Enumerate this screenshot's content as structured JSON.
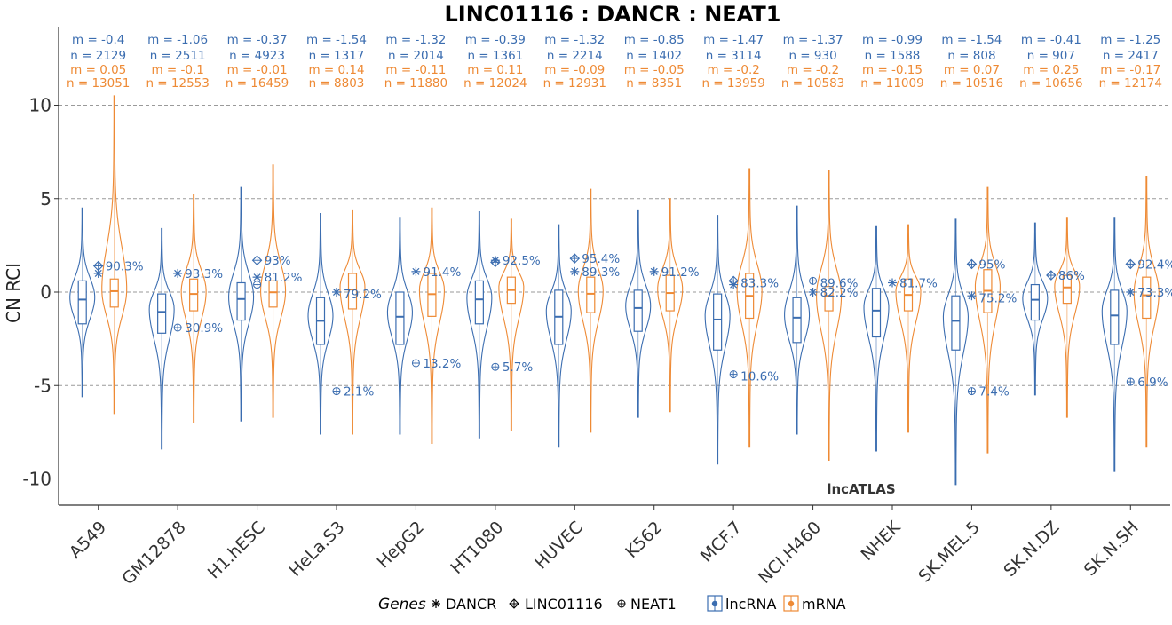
{
  "chart_data": {
    "type": "violin",
    "title": "LINC01116 : DANCR : NEAT1",
    "xlabel": "",
    "ylabel": "CN RCI",
    "ylim": [
      -10.5,
      11.5
    ],
    "yticks": [
      10,
      5,
      0,
      -5,
      -10
    ],
    "grid": "horizontal-dashed",
    "watermark": "lncATLAS",
    "colors": {
      "lncRNA": "#3b6db0",
      "mRNA": "#ee8a35",
      "title": "#000000"
    },
    "legend": {
      "position": "bottom",
      "genes_title": "Genes",
      "genes": [
        {
          "symbol": "✳",
          "label": "DANCR"
        },
        {
          "symbol": "⊕",
          "label": "LINC01116",
          "marker": "diamond-plus"
        },
        {
          "symbol": "⊕",
          "label": "NEAT1",
          "marker": "circle-plus"
        }
      ],
      "classes": [
        {
          "label": "lncRNA",
          "color": "#3b6db0"
        },
        {
          "label": "mRNA",
          "color": "#ee8a35"
        }
      ]
    },
    "categories": [
      "A549",
      "GM12878",
      "H1.hESC",
      "HeLa.S3",
      "HepG2",
      "HT1080",
      "HUVEC",
      "K562",
      "MCF.7",
      "NCI.H460",
      "NHEK",
      "SK.MEL.5",
      "SK.N.DZ",
      "SK.N.SH"
    ],
    "stats": [
      {
        "cell": "A549",
        "lnc_m": "m = -0.4",
        "lnc_n": "n = 2129",
        "mrna_m": "m = 0.05",
        "mrna_n": "n = 13051"
      },
      {
        "cell": "GM12878",
        "lnc_m": "m = -1.06",
        "lnc_n": "n = 2511",
        "mrna_m": "m = -0.1",
        "mrna_n": "n = 12553"
      },
      {
        "cell": "H1.hESC",
        "lnc_m": "m = -0.37",
        "lnc_n": "n = 4923",
        "mrna_m": "m = -0.01",
        "mrna_n": "n = 16459"
      },
      {
        "cell": "HeLa.S3",
        "lnc_m": "m = -1.54",
        "lnc_n": "n = 1317",
        "mrna_m": "m = 0.14",
        "mrna_n": "n = 8803"
      },
      {
        "cell": "HepG2",
        "lnc_m": "m = -1.32",
        "lnc_n": "n = 2014",
        "mrna_m": "m = -0.11",
        "mrna_n": "n = 11880"
      },
      {
        "cell": "HT1080",
        "lnc_m": "m = -0.39",
        "lnc_n": "n = 1361",
        "mrna_m": "m = 0.11",
        "mrna_n": "n = 12024"
      },
      {
        "cell": "HUVEC",
        "lnc_m": "m = -1.32",
        "lnc_n": "n = 2214",
        "mrna_m": "m = -0.09",
        "mrna_n": "n = 12931"
      },
      {
        "cell": "K562",
        "lnc_m": "m = -0.85",
        "lnc_n": "n = 1402",
        "mrna_m": "m = -0.05",
        "mrna_n": "n = 8351"
      },
      {
        "cell": "MCF.7",
        "lnc_m": "m = -1.47",
        "lnc_n": "n = 3114",
        "mrna_m": "m = -0.2",
        "mrna_n": "n = 13959"
      },
      {
        "cell": "NCI.H460",
        "lnc_m": "m = -1.37",
        "lnc_n": "n = 930",
        "mrna_m": "m = -0.2",
        "mrna_n": "n = 10583"
      },
      {
        "cell": "NHEK",
        "lnc_m": "m = -0.99",
        "lnc_n": "n = 1588",
        "mrna_m": "m = -0.15",
        "mrna_n": "n = 11009"
      },
      {
        "cell": "SK.MEL.5",
        "lnc_m": "m = -1.54",
        "lnc_n": "n = 808",
        "mrna_m": "m = 0.07",
        "mrna_n": "n = 10516"
      },
      {
        "cell": "SK.N.DZ",
        "lnc_m": "m = -0.41",
        "lnc_n": "n = 907",
        "mrna_m": "m = 0.25",
        "mrna_n": "n = 10656"
      },
      {
        "cell": "SK.N.SH",
        "lnc_m": "m = -1.25",
        "lnc_n": "n = 2417",
        "mrna_m": "m = -0.17",
        "mrna_n": "n = 12174"
      }
    ],
    "series": [
      {
        "name": "lncRNA",
        "median": [
          -0.4,
          -1.06,
          -0.37,
          -1.54,
          -1.32,
          -0.39,
          -1.32,
          -0.85,
          -1.47,
          -1.37,
          -0.99,
          -1.54,
          -0.41,
          -1.25
        ],
        "q1": [
          -1.7,
          -2.2,
          -1.5,
          -2.8,
          -2.8,
          -1.7,
          -2.8,
          -2.1,
          -3.1,
          -2.7,
          -2.4,
          -3.1,
          -1.5,
          -2.8
        ],
        "q3": [
          0.6,
          -0.1,
          0.5,
          -0.3,
          0.0,
          0.6,
          0.1,
          0.1,
          -0.1,
          -0.3,
          0.2,
          -0.2,
          0.4,
          0.1
        ],
        "min": [
          -5.6,
          -8.4,
          -6.9,
          -7.6,
          -7.6,
          -7.8,
          -8.3,
          -6.7,
          -9.2,
          -7.6,
          -8.5,
          -10.3,
          -5.5,
          -9.6
        ],
        "max": [
          4.5,
          3.4,
          5.6,
          4.2,
          4.0,
          4.3,
          3.6,
          4.4,
          4.1,
          4.6,
          3.5,
          3.9,
          3.7,
          4.0
        ]
      },
      {
        "name": "mRNA",
        "median": [
          0.05,
          -0.1,
          -0.01,
          0.14,
          -0.11,
          0.11,
          -0.09,
          -0.05,
          -0.2,
          -0.2,
          -0.15,
          0.07,
          0.25,
          -0.17
        ],
        "q1": [
          -0.8,
          -1.0,
          -0.8,
          -0.9,
          -1.3,
          -0.6,
          -1.1,
          -1.0,
          -1.4,
          -1.0,
          -1.0,
          -1.1,
          -0.6,
          -1.4
        ],
        "q3": [
          0.7,
          0.7,
          0.6,
          1.0,
          1.0,
          0.8,
          0.8,
          0.9,
          1.0,
          0.3,
          0.7,
          1.2,
          0.9,
          0.8
        ],
        "min": [
          -6.5,
          -7.0,
          -6.7,
          -7.6,
          -8.1,
          -7.4,
          -7.5,
          -6.4,
          -8.3,
          -9.0,
          -7.5,
          -8.6,
          -6.7,
          -8.3
        ],
        "max": [
          10.5,
          5.2,
          6.8,
          4.4,
          4.5,
          3.9,
          5.5,
          5.0,
          6.6,
          6.5,
          3.6,
          5.6,
          4.0,
          6.2
        ]
      }
    ],
    "gene_points": [
      {
        "cell": "A549",
        "DANCR": 1.0,
        "LINC01116": 1.4,
        "NEAT1": null,
        "labels": [
          {
            "text": "90.3%",
            "y": 1.4
          }
        ]
      },
      {
        "cell": "GM12878",
        "DANCR": 1.0,
        "LINC01116": null,
        "NEAT1": -1.9,
        "labels": [
          {
            "text": "93.3%",
            "y": 1.0
          },
          {
            "text": "30.9%",
            "y": -1.9
          }
        ]
      },
      {
        "cell": "H1.hESC",
        "DANCR": 0.8,
        "LINC01116": 1.7,
        "NEAT1": 0.4,
        "labels": [
          {
            "text": "93%",
            "y": 1.7
          },
          {
            "text": "81.2%",
            "y": 0.8
          }
        ]
      },
      {
        "cell": "HeLa.S3",
        "DANCR": 0.0,
        "LINC01116": null,
        "NEAT1": -5.3,
        "labels": [
          {
            "text": "79.2%",
            "y": -0.1
          },
          {
            "text": "2.1%",
            "y": -5.3
          }
        ]
      },
      {
        "cell": "HepG2",
        "DANCR": 1.1,
        "LINC01116": null,
        "NEAT1": -3.8,
        "labels": [
          {
            "text": "91.4%",
            "y": 1.1
          },
          {
            "text": "13.2%",
            "y": -3.8
          }
        ]
      },
      {
        "cell": "HT1080",
        "DANCR": 1.7,
        "LINC01116": 1.6,
        "NEAT1": -4.0,
        "labels": [
          {
            "text": "92.5%",
            "y": 1.7
          },
          {
            "text": "5.7%",
            "y": -4.0
          }
        ]
      },
      {
        "cell": "HUVEC",
        "DANCR": 1.1,
        "LINC01116": 1.8,
        "NEAT1": null,
        "labels": [
          {
            "text": "95.4%",
            "y": 1.8
          },
          {
            "text": "89.3%",
            "y": 1.1
          }
        ]
      },
      {
        "cell": "K562",
        "DANCR": 1.1,
        "LINC01116": null,
        "NEAT1": null,
        "labels": [
          {
            "text": "91.2%",
            "y": 1.1
          }
        ]
      },
      {
        "cell": "MCF.7",
        "DANCR": 0.4,
        "LINC01116": 0.6,
        "NEAT1": -4.4,
        "labels": [
          {
            "text": "83.3%",
            "y": 0.5
          },
          {
            "text": "10.6%",
            "y": -4.5
          }
        ]
      },
      {
        "cell": "NCI.H460",
        "DANCR": 0.0,
        "LINC01116": null,
        "NEAT1": 0.6,
        "labels": [
          {
            "text": "89.6%",
            "y": 0.5
          },
          {
            "text": "82.2%",
            "y": 0.0
          }
        ]
      },
      {
        "cell": "NHEK",
        "DANCR": 0.5,
        "LINC01116": null,
        "NEAT1": null,
        "labels": [
          {
            "text": "81.7%",
            "y": 0.5
          }
        ]
      },
      {
        "cell": "SK.MEL.5",
        "DANCR": -0.2,
        "LINC01116": 1.5,
        "NEAT1": -5.3,
        "labels": [
          {
            "text": "95%",
            "y": 1.5
          },
          {
            "text": "75.2%",
            "y": -0.3
          },
          {
            "text": "7.4%",
            "y": -5.3
          }
        ]
      },
      {
        "cell": "SK.N.DZ",
        "DANCR": null,
        "LINC01116": 0.9,
        "NEAT1": null,
        "labels": [
          {
            "text": "86%",
            "y": 0.9
          }
        ]
      },
      {
        "cell": "SK.N.SH",
        "DANCR": 0.0,
        "LINC01116": 1.5,
        "NEAT1": -4.8,
        "labels": [
          {
            "text": "92.4%",
            "y": 1.5
          },
          {
            "text": "73.3%",
            "y": 0.0
          },
          {
            "text": "6.9%",
            "y": -4.8
          }
        ]
      }
    ]
  }
}
